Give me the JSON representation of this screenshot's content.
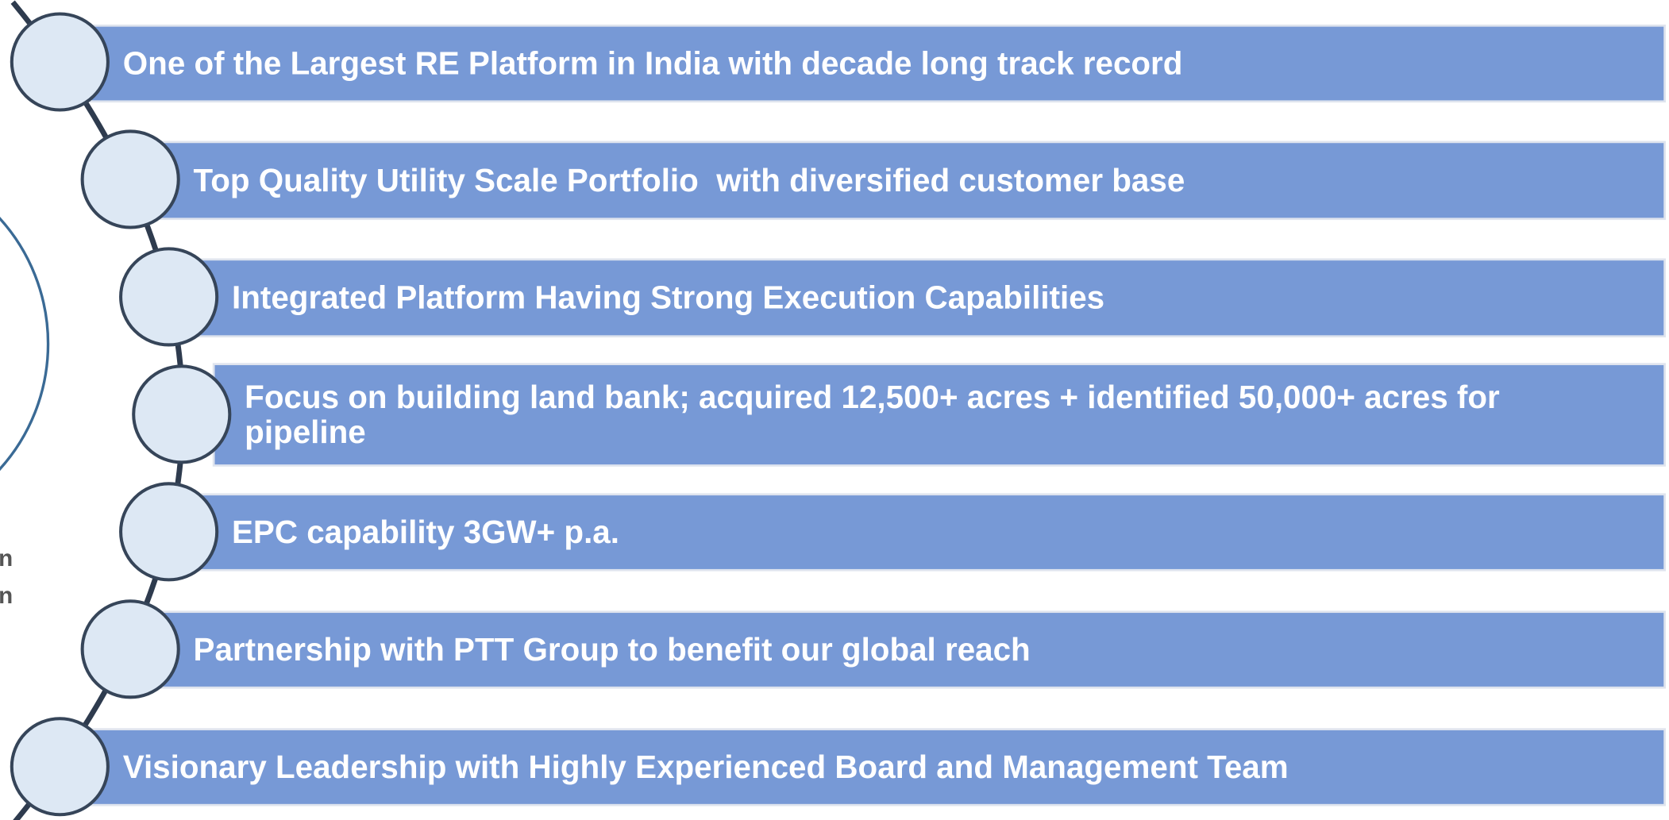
{
  "items": [
    {
      "lines": [
        "One of the Largest RE Platform in India with decade long track record"
      ]
    },
    {
      "lines": [
        "Top Quality Utility Scale Portfolio  with diversified customer base"
      ]
    },
    {
      "lines": [
        "Integrated Platform Having Strong Execution Capabilities"
      ]
    },
    {
      "lines": [
        "Focus on building land bank; acquired 12,500+ acres + identified 50,000+ acres for",
        "pipeline"
      ]
    },
    {
      "lines": [
        "EPC capability 3GW+ p.a."
      ]
    },
    {
      "lines": [
        "Partnership with PTT Group to benefit our global reach"
      ]
    },
    {
      "lines": [
        "Visionary Leadership with Highly Experienced Board and Management Team"
      ]
    }
  ],
  "left_fragments": [
    "n",
    "n"
  ]
}
